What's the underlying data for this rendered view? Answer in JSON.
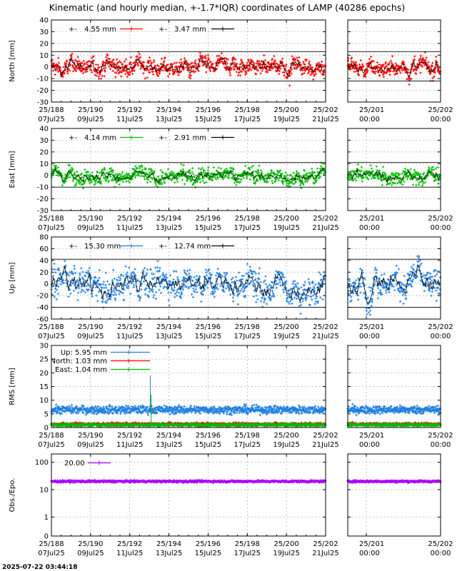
{
  "chart_data": {
    "title": "Kinematic (and hourly median, +-1.7*IQR) coordinates of LAMP (40286 epochs)",
    "timestamp": "2025-07-22 03:44:18",
    "type": "scatter",
    "x_main": {
      "range": [
        188,
        202
      ],
      "ticks": [
        188,
        190,
        192,
        194,
        196,
        198,
        200,
        202
      ],
      "tick_labels_top": [
        "25/188",
        "25/190",
        "25/192",
        "25/194",
        "25/196",
        "25/198",
        "25/200",
        "25/202"
      ],
      "tick_labels_bottom": [
        "07Jul25",
        "09Jul25",
        "11Jul25",
        "13Jul25",
        "15Jul25",
        "17Jul25",
        "19Jul25",
        "21Jul25"
      ]
    },
    "x_zoom": {
      "range": [
        200.75,
        202
      ],
      "ticks": [
        201,
        202
      ],
      "tick_labels_top": [
        "25/201",
        "25/202"
      ],
      "tick_labels_bottom": [
        "00:00",
        "00:00"
      ]
    },
    "panels": [
      {
        "name": "north",
        "ylabel": "North [mm]",
        "ylim": [
          -30,
          40
        ],
        "yticks": [
          -30,
          -20,
          -10,
          0,
          10,
          20,
          30,
          40
        ],
        "scale": "linear",
        "color": "#ff0000",
        "spread": 4.55,
        "median_spread": 3.47,
        "refs": [
          13,
          -12
        ],
        "legend": [
          {
            "label": "4.55 mm",
            "color": "#ff0000"
          },
          {
            "label": "3.47 mm",
            "color": "#000000"
          }
        ]
      },
      {
        "name": "east",
        "ylabel": "East [mm]",
        "ylim": [
          -30,
          40
        ],
        "yticks": [
          -30,
          -20,
          -10,
          0,
          10,
          20,
          30,
          40
        ],
        "scale": "linear",
        "color": "#00bb00",
        "spread": 4.14,
        "median_spread": 2.91,
        "refs": [
          11,
          -10
        ],
        "legend": [
          {
            "label": "4.14 mm",
            "color": "#00bb00"
          },
          {
            "label": "2.91 mm",
            "color": "#000000"
          }
        ]
      },
      {
        "name": "up",
        "ylabel": "Up [mm]",
        "ylim": [
          -60,
          80
        ],
        "yticks": [
          -60,
          -40,
          -20,
          0,
          20,
          40,
          60,
          80
        ],
        "scale": "linear",
        "color": "#1e7fe0",
        "spread": 15.3,
        "median_spread": 12.74,
        "refs": [
          42,
          -40
        ],
        "legend": [
          {
            "label": "15.30 mm",
            "color": "#1e7fe0"
          },
          {
            "label": "12.74 mm",
            "color": "#000000"
          }
        ]
      },
      {
        "name": "rms",
        "ylabel": "RMS [mm]",
        "ylim": [
          0,
          30
        ],
        "yticks": [
          0,
          5,
          10,
          15,
          20,
          25,
          30
        ],
        "scale": "linear",
        "series": [
          {
            "name": "Up:",
            "value": "5.95 mm",
            "mean": 6.5,
            "color": "#1e7fe0"
          },
          {
            "name": "North:",
            "value": "1.03 mm",
            "mean": 1.2,
            "color": "#ff0000"
          },
          {
            "name": "East:",
            "value": "1.04 mm",
            "mean": 1.0,
            "color": "#00bb00"
          }
        ],
        "spike": {
          "x": 193.05,
          "y": 19
        }
      },
      {
        "name": "obs",
        "ylabel": "Obs./Epo.",
        "ylim": [
          0,
          200
        ],
        "yticks": [
          0,
          1,
          10,
          100
        ],
        "ytick_labels": [
          "0",
          "1",
          "10",
          "100"
        ],
        "scale": "log",
        "color": "#aa00ff",
        "mean": 20,
        "legend": [
          {
            "label": "20.00",
            "color": "#aa00ff"
          }
        ]
      }
    ]
  }
}
